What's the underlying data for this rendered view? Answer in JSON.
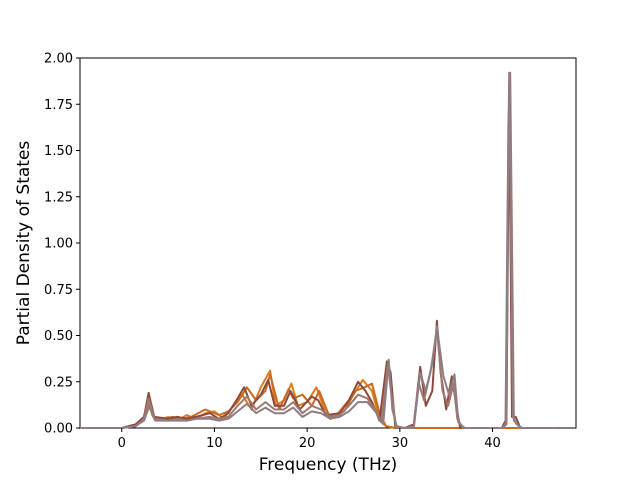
{
  "chart_data": {
    "type": "line",
    "title": "",
    "xlabel": "Frequency (THz)",
    "ylabel": "Partial Density of States",
    "xlim": [
      -4.5,
      49.0
    ],
    "ylim": [
      0.0,
      2.0
    ],
    "xticks": [
      0,
      10,
      20,
      30,
      40
    ],
    "xtick_labels": [
      "0",
      "10",
      "20",
      "30",
      "40"
    ],
    "yticks": [
      0.0,
      0.25,
      0.5,
      0.75,
      1.0,
      1.25,
      1.5,
      1.75,
      2.0
    ],
    "ytick_labels": [
      "0.00",
      "0.25",
      "0.50",
      "0.75",
      "1.00",
      "1.25",
      "1.50",
      "1.75",
      "2.00"
    ],
    "grid": false,
    "legend": "none",
    "series": [
      {
        "color": "#e07b1a",
        "points": [
          [
            -4.5,
            0
          ],
          [
            0,
            0
          ],
          [
            1.5,
            0.01
          ],
          [
            2.3,
            0.04
          ],
          [
            2.9,
            0.15
          ],
          [
            3.3,
            0.07
          ],
          [
            4,
            0.04
          ],
          [
            5,
            0.06
          ],
          [
            6,
            0.04
          ],
          [
            7,
            0.07
          ],
          [
            8,
            0.05
          ],
          [
            9,
            0.08
          ],
          [
            10,
            0.09
          ],
          [
            11,
            0.05
          ],
          [
            12,
            0.12
          ],
          [
            13,
            0.18
          ],
          [
            14,
            0.1
          ],
          [
            15,
            0.22
          ],
          [
            16,
            0.31
          ],
          [
            16.6,
            0.12
          ],
          [
            17.5,
            0.15
          ],
          [
            18.3,
            0.24
          ],
          [
            19,
            0.12
          ],
          [
            20,
            0.14
          ],
          [
            21,
            0.22
          ],
          [
            22,
            0.08
          ],
          [
            23,
            0.06
          ],
          [
            24,
            0.12
          ],
          [
            25,
            0.18
          ],
          [
            26,
            0.26
          ],
          [
            27,
            0.2
          ],
          [
            27.8,
            0.05
          ],
          [
            28.5,
            0.01
          ],
          [
            29.5,
            0
          ],
          [
            46.5,
            0
          ]
        ]
      },
      {
        "color": "#c96a22",
        "points": [
          [
            -4.5,
            0
          ],
          [
            0,
            0
          ],
          [
            1.5,
            0.01
          ],
          [
            2.3,
            0.05
          ],
          [
            2.9,
            0.13
          ],
          [
            3.4,
            0.06
          ],
          [
            4.5,
            0.05
          ],
          [
            5.5,
            0.06
          ],
          [
            6.5,
            0.05
          ],
          [
            7.5,
            0.06
          ],
          [
            9,
            0.1
          ],
          [
            10.5,
            0.07
          ],
          [
            11.5,
            0.09
          ],
          [
            12.5,
            0.14
          ],
          [
            13.5,
            0.22
          ],
          [
            14.5,
            0.15
          ],
          [
            15.5,
            0.2
          ],
          [
            16,
            0.29
          ],
          [
            17,
            0.1
          ],
          [
            18,
            0.21
          ],
          [
            18.5,
            0.16
          ],
          [
            19.5,
            0.18
          ],
          [
            20.5,
            0.12
          ],
          [
            21.3,
            0.2
          ],
          [
            22.5,
            0.05
          ],
          [
            24,
            0.09
          ],
          [
            25.2,
            0.2
          ],
          [
            26.2,
            0.22
          ],
          [
            27,
            0.24
          ],
          [
            27.8,
            0.08
          ],
          [
            28.5,
            0.01
          ],
          [
            29.5,
            0
          ],
          [
            46.5,
            0
          ]
        ]
      },
      {
        "color": "#8b4a3e",
        "points": [
          [
            -4.5,
            0
          ],
          [
            0,
            0
          ],
          [
            1.5,
            0.02
          ],
          [
            2.4,
            0.06
          ],
          [
            2.9,
            0.19
          ],
          [
            3.5,
            0.06
          ],
          [
            5,
            0.05
          ],
          [
            6,
            0.06
          ],
          [
            7,
            0.05
          ],
          [
            8,
            0.06
          ],
          [
            9.5,
            0.08
          ],
          [
            10.5,
            0.05
          ],
          [
            11.5,
            0.08
          ],
          [
            12.5,
            0.16
          ],
          [
            13.2,
            0.22
          ],
          [
            14,
            0.12
          ],
          [
            15,
            0.18
          ],
          [
            15.8,
            0.26
          ],
          [
            16.5,
            0.12
          ],
          [
            17.5,
            0.12
          ],
          [
            18.2,
            0.2
          ],
          [
            19.2,
            0.1
          ],
          [
            20.5,
            0.17
          ],
          [
            21.2,
            0.15
          ],
          [
            22,
            0.07
          ],
          [
            23.5,
            0.08
          ],
          [
            24.5,
            0.15
          ],
          [
            25.5,
            0.25
          ],
          [
            26.3,
            0.2
          ],
          [
            27,
            0.14
          ],
          [
            27.8,
            0.04
          ],
          [
            28.6,
            0.36
          ],
          [
            29,
            0.3
          ],
          [
            29.5,
            0.01
          ],
          [
            30.5,
            0
          ],
          [
            31.5,
            0.02
          ],
          [
            32.2,
            0.33
          ],
          [
            32.8,
            0.12
          ],
          [
            33.5,
            0.2
          ],
          [
            34,
            0.58
          ],
          [
            34.4,
            0.3
          ],
          [
            35,
            0.1
          ],
          [
            35.6,
            0.28
          ],
          [
            36,
            0.15
          ],
          [
            36.5,
            0
          ],
          [
            41,
            0
          ],
          [
            41.5,
            0.05
          ],
          [
            41.8,
            1.86
          ],
          [
            42.1,
            0.06
          ],
          [
            42.5,
            0.06
          ],
          [
            43,
            0
          ],
          [
            46.5,
            0
          ]
        ]
      },
      {
        "color": "#a07870",
        "points": [
          [
            -4.5,
            0
          ],
          [
            0,
            0
          ],
          [
            1.5,
            0.01
          ],
          [
            2.4,
            0.05
          ],
          [
            2.9,
            0.16
          ],
          [
            3.5,
            0.05
          ],
          [
            5,
            0.04
          ],
          [
            6,
            0.05
          ],
          [
            7,
            0.04
          ],
          [
            8,
            0.05
          ],
          [
            9.5,
            0.06
          ],
          [
            10.5,
            0.05
          ],
          [
            11.5,
            0.06
          ],
          [
            12.5,
            0.12
          ],
          [
            13.5,
            0.17
          ],
          [
            14.5,
            0.1
          ],
          [
            15.5,
            0.14
          ],
          [
            16.5,
            0.1
          ],
          [
            17.5,
            0.1
          ],
          [
            18.5,
            0.14
          ],
          [
            19.5,
            0.08
          ],
          [
            20.5,
            0.12
          ],
          [
            21.5,
            0.1
          ],
          [
            22.5,
            0.06
          ],
          [
            23.5,
            0.07
          ],
          [
            24.5,
            0.12
          ],
          [
            25.5,
            0.18
          ],
          [
            26.5,
            0.16
          ],
          [
            27.3,
            0.1
          ],
          [
            28,
            0.03
          ],
          [
            28.7,
            0.34
          ],
          [
            29.1,
            0.18
          ],
          [
            29.6,
            0.01
          ],
          [
            30.5,
            0
          ],
          [
            31.5,
            0.01
          ],
          [
            32,
            0.25
          ],
          [
            32.6,
            0.15
          ],
          [
            33.3,
            0.3
          ],
          [
            34,
            0.53
          ],
          [
            34.6,
            0.2
          ],
          [
            35.2,
            0.12
          ],
          [
            35.8,
            0.24
          ],
          [
            36.2,
            0.05
          ],
          [
            36.8,
            0
          ],
          [
            41,
            0
          ],
          [
            41.5,
            0.02
          ],
          [
            41.7,
            1.62
          ],
          [
            41.9,
            1.92
          ],
          [
            42.3,
            0.04
          ],
          [
            43,
            0
          ],
          [
            46.5,
            0
          ]
        ]
      },
      {
        "color": "#8e7d82",
        "points": [
          [
            -4.5,
            0
          ],
          [
            0,
            0
          ],
          [
            1.5,
            0.01
          ],
          [
            2.4,
            0.04
          ],
          [
            3,
            0.12
          ],
          [
            3.6,
            0.04
          ],
          [
            5,
            0.04
          ],
          [
            6,
            0.04
          ],
          [
            7,
            0.04
          ],
          [
            8,
            0.05
          ],
          [
            9.5,
            0.05
          ],
          [
            10.5,
            0.04
          ],
          [
            11.5,
            0.05
          ],
          [
            12.5,
            0.09
          ],
          [
            13.5,
            0.13
          ],
          [
            14.5,
            0.08
          ],
          [
            15.5,
            0.11
          ],
          [
            16.5,
            0.08
          ],
          [
            17.5,
            0.08
          ],
          [
            18.5,
            0.11
          ],
          [
            19.5,
            0.06
          ],
          [
            20.5,
            0.09
          ],
          [
            21.5,
            0.08
          ],
          [
            22.5,
            0.05
          ],
          [
            23.5,
            0.06
          ],
          [
            24.5,
            0.09
          ],
          [
            25.5,
            0.14
          ],
          [
            26.5,
            0.14
          ],
          [
            27.5,
            0.08
          ],
          [
            28.2,
            0.02
          ],
          [
            28.8,
            0.37
          ],
          [
            29.2,
            0.1
          ],
          [
            29.7,
            0
          ],
          [
            31.5,
            0
          ],
          [
            32.2,
            0.3
          ],
          [
            32.8,
            0.2
          ],
          [
            33.5,
            0.35
          ],
          [
            34,
            0.55
          ],
          [
            34.7,
            0.28
          ],
          [
            35.3,
            0.18
          ],
          [
            35.9,
            0.29
          ],
          [
            36.3,
            0.03
          ],
          [
            37,
            0
          ],
          [
            41,
            0
          ],
          [
            41.4,
            0.02
          ],
          [
            41.6,
            1.1
          ],
          [
            41.8,
            1.92
          ],
          [
            42.2,
            0.06
          ],
          [
            42.6,
            0.02
          ],
          [
            43.2,
            0
          ],
          [
            46.5,
            0
          ]
        ]
      }
    ]
  }
}
